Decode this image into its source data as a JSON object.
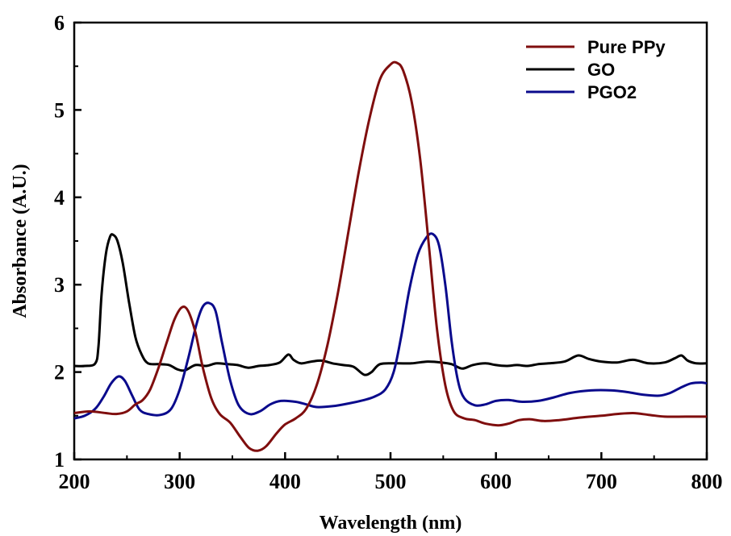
{
  "chart_data": {
    "type": "line",
    "xlabel": "Wavelength (nm)",
    "ylabel": "Absorbance (A.U.)",
    "xlim": [
      200,
      800
    ],
    "ylim": [
      1,
      6
    ],
    "xticks": [
      200,
      300,
      400,
      500,
      600,
      700,
      800
    ],
    "yticks": [
      1,
      2,
      3,
      4,
      5,
      6
    ],
    "grid": false,
    "legend_position": "top-right",
    "series": [
      {
        "name": "Pure PPy",
        "color": "#7f0e0e",
        "points": [
          [
            200,
            1.53
          ],
          [
            215,
            1.55
          ],
          [
            230,
            1.53
          ],
          [
            240,
            1.52
          ],
          [
            250,
            1.55
          ],
          [
            258,
            1.63
          ],
          [
            265,
            1.68
          ],
          [
            272,
            1.8
          ],
          [
            280,
            2.05
          ],
          [
            288,
            2.35
          ],
          [
            295,
            2.6
          ],
          [
            302,
            2.74
          ],
          [
            308,
            2.7
          ],
          [
            315,
            2.45
          ],
          [
            322,
            2.05
          ],
          [
            330,
            1.7
          ],
          [
            338,
            1.52
          ],
          [
            348,
            1.42
          ],
          [
            358,
            1.25
          ],
          [
            366,
            1.13
          ],
          [
            374,
            1.1
          ],
          [
            382,
            1.15
          ],
          [
            392,
            1.3
          ],
          [
            400,
            1.4
          ],
          [
            410,
            1.47
          ],
          [
            420,
            1.58
          ],
          [
            430,
            1.85
          ],
          [
            440,
            2.3
          ],
          [
            450,
            2.9
          ],
          [
            460,
            3.6
          ],
          [
            470,
            4.3
          ],
          [
            480,
            4.9
          ],
          [
            490,
            5.35
          ],
          [
            500,
            5.52
          ],
          [
            506,
            5.54
          ],
          [
            512,
            5.45
          ],
          [
            520,
            5.1
          ],
          [
            528,
            4.45
          ],
          [
            536,
            3.5
          ],
          [
            544,
            2.5
          ],
          [
            552,
            1.85
          ],
          [
            560,
            1.55
          ],
          [
            570,
            1.47
          ],
          [
            580,
            1.45
          ],
          [
            590,
            1.41
          ],
          [
            602,
            1.39
          ],
          [
            612,
            1.41
          ],
          [
            622,
            1.45
          ],
          [
            632,
            1.46
          ],
          [
            645,
            1.44
          ],
          [
            660,
            1.45
          ],
          [
            680,
            1.48
          ],
          [
            700,
            1.5
          ],
          [
            715,
            1.52
          ],
          [
            730,
            1.53
          ],
          [
            745,
            1.51
          ],
          [
            760,
            1.49
          ],
          [
            780,
            1.49
          ],
          [
            800,
            1.49
          ]
        ]
      },
      {
        "name": "GO",
        "color": "#000000",
        "points": [
          [
            200,
            2.07
          ],
          [
            210,
            2.07
          ],
          [
            220,
            2.1
          ],
          [
            223,
            2.3
          ],
          [
            226,
            2.9
          ],
          [
            230,
            3.35
          ],
          [
            234,
            3.55
          ],
          [
            237,
            3.57
          ],
          [
            241,
            3.5
          ],
          [
            246,
            3.25
          ],
          [
            252,
            2.8
          ],
          [
            258,
            2.4
          ],
          [
            264,
            2.2
          ],
          [
            270,
            2.1
          ],
          [
            280,
            2.09
          ],
          [
            290,
            2.08
          ],
          [
            298,
            2.03
          ],
          [
            305,
            2.02
          ],
          [
            315,
            2.08
          ],
          [
            325,
            2.07
          ],
          [
            335,
            2.1
          ],
          [
            345,
            2.09
          ],
          [
            355,
            2.08
          ],
          [
            365,
            2.05
          ],
          [
            375,
            2.07
          ],
          [
            385,
            2.08
          ],
          [
            395,
            2.11
          ],
          [
            403,
            2.2
          ],
          [
            408,
            2.14
          ],
          [
            415,
            2.1
          ],
          [
            425,
            2.12
          ],
          [
            435,
            2.13
          ],
          [
            445,
            2.1
          ],
          [
            455,
            2.08
          ],
          [
            465,
            2.06
          ],
          [
            475,
            1.97
          ],
          [
            482,
            2.0
          ],
          [
            490,
            2.09
          ],
          [
            505,
            2.1
          ],
          [
            520,
            2.1
          ],
          [
            535,
            2.12
          ],
          [
            548,
            2.11
          ],
          [
            558,
            2.09
          ],
          [
            568,
            2.04
          ],
          [
            578,
            2.08
          ],
          [
            590,
            2.1
          ],
          [
            600,
            2.08
          ],
          [
            610,
            2.07
          ],
          [
            620,
            2.08
          ],
          [
            630,
            2.07
          ],
          [
            640,
            2.09
          ],
          [
            650,
            2.1
          ],
          [
            665,
            2.12
          ],
          [
            678,
            2.19
          ],
          [
            688,
            2.15
          ],
          [
            700,
            2.12
          ],
          [
            715,
            2.11
          ],
          [
            730,
            2.14
          ],
          [
            745,
            2.1
          ],
          [
            760,
            2.11
          ],
          [
            770,
            2.16
          ],
          [
            776,
            2.19
          ],
          [
            782,
            2.13
          ],
          [
            790,
            2.1
          ],
          [
            800,
            2.1
          ]
        ]
      },
      {
        "name": "PGO2",
        "color": "#0a0a8c",
        "points": [
          [
            200,
            1.47
          ],
          [
            210,
            1.5
          ],
          [
            220,
            1.58
          ],
          [
            228,
            1.72
          ],
          [
            235,
            1.87
          ],
          [
            242,
            1.95
          ],
          [
            248,
            1.9
          ],
          [
            255,
            1.73
          ],
          [
            262,
            1.57
          ],
          [
            270,
            1.52
          ],
          [
            282,
            1.51
          ],
          [
            292,
            1.58
          ],
          [
            300,
            1.8
          ],
          [
            308,
            2.15
          ],
          [
            316,
            2.55
          ],
          [
            322,
            2.75
          ],
          [
            328,
            2.79
          ],
          [
            334,
            2.7
          ],
          [
            340,
            2.35
          ],
          [
            348,
            1.9
          ],
          [
            356,
            1.62
          ],
          [
            366,
            1.52
          ],
          [
            376,
            1.55
          ],
          [
            386,
            1.63
          ],
          [
            396,
            1.67
          ],
          [
            410,
            1.66
          ],
          [
            420,
            1.63
          ],
          [
            430,
            1.6
          ],
          [
            445,
            1.61
          ],
          [
            460,
            1.64
          ],
          [
            475,
            1.68
          ],
          [
            485,
            1.72
          ],
          [
            495,
            1.8
          ],
          [
            503,
            2.0
          ],
          [
            510,
            2.4
          ],
          [
            518,
            2.95
          ],
          [
            526,
            3.35
          ],
          [
            534,
            3.54
          ],
          [
            540,
            3.58
          ],
          [
            546,
            3.45
          ],
          [
            552,
            3.0
          ],
          [
            558,
            2.35
          ],
          [
            564,
            1.9
          ],
          [
            570,
            1.7
          ],
          [
            580,
            1.62
          ],
          [
            590,
            1.63
          ],
          [
            600,
            1.67
          ],
          [
            612,
            1.68
          ],
          [
            625,
            1.66
          ],
          [
            640,
            1.67
          ],
          [
            655,
            1.71
          ],
          [
            670,
            1.76
          ],
          [
            690,
            1.79
          ],
          [
            710,
            1.79
          ],
          [
            725,
            1.77
          ],
          [
            740,
            1.74
          ],
          [
            755,
            1.73
          ],
          [
            765,
            1.76
          ],
          [
            775,
            1.82
          ],
          [
            785,
            1.87
          ],
          [
            795,
            1.88
          ],
          [
            800,
            1.87
          ]
        ]
      }
    ]
  }
}
